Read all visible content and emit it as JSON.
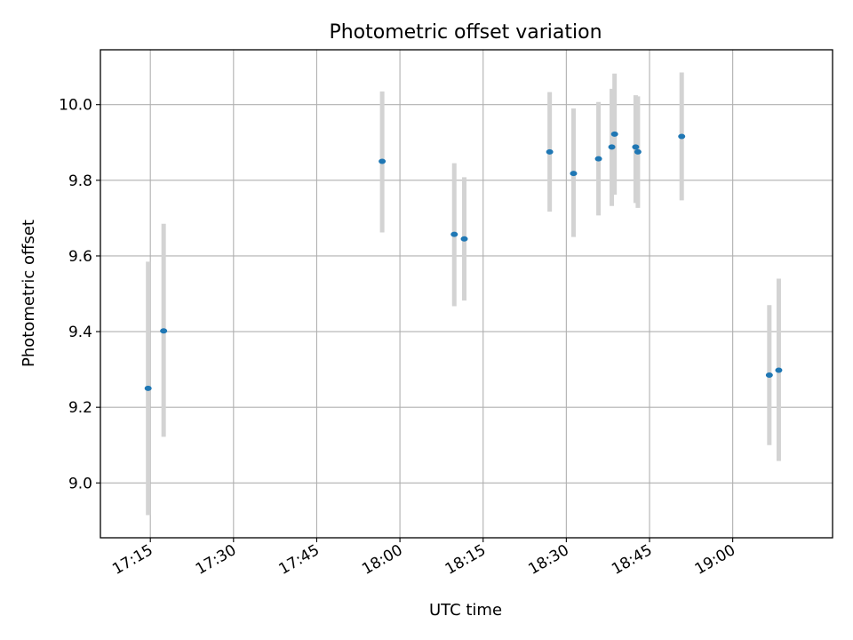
{
  "chart_data": {
    "type": "scatter",
    "title": "Photometric offset variation",
    "xlabel": "UTC time",
    "ylabel": "Photometric offset",
    "xlim": [
      "17:06",
      "19:18"
    ],
    "ylim": [
      8.855,
      10.145
    ],
    "x_ticks": [
      "17:15",
      "17:30",
      "17:45",
      "18:00",
      "18:15",
      "18:30",
      "18:45",
      "19:00"
    ],
    "y_ticks": [
      "9.0",
      "9.2",
      "9.4",
      "9.6",
      "9.8",
      "10.0"
    ],
    "grid": true,
    "legend": "none",
    "colors": {
      "point": "#1f77b4",
      "errorbar": "#d3d3d3",
      "grid": "#b0b0b0"
    },
    "points": [
      {
        "time": "17:14:36",
        "y": 9.25,
        "err_low": 8.915,
        "err_high": 9.585
      },
      {
        "time": "17:17:24",
        "y": 9.402,
        "err_low": 9.122,
        "err_high": 9.685
      },
      {
        "time": "17:56:48",
        "y": 9.85,
        "err_low": 9.662,
        "err_high": 10.035
      },
      {
        "time": "18:09:48",
        "y": 9.657,
        "err_low": 9.467,
        "err_high": 9.845
      },
      {
        "time": "18:11:36",
        "y": 9.645,
        "err_low": 9.482,
        "err_high": 9.808
      },
      {
        "time": "18:27:00",
        "y": 9.875,
        "err_low": 9.717,
        "err_high": 10.033
      },
      {
        "time": "18:31:18",
        "y": 9.818,
        "err_low": 9.65,
        "err_high": 9.99
      },
      {
        "time": "18:35:48",
        "y": 9.857,
        "err_low": 9.707,
        "err_high": 10.007
      },
      {
        "time": "18:38:12",
        "y": 9.888,
        "err_low": 9.732,
        "err_high": 10.042
      },
      {
        "time": "18:38:42",
        "y": 9.922,
        "err_low": 9.762,
        "err_high": 10.082
      },
      {
        "time": "18:42:30",
        "y": 9.888,
        "err_low": 9.74,
        "err_high": 10.025
      },
      {
        "time": "18:42:54",
        "y": 9.875,
        "err_low": 9.727,
        "err_high": 10.022
      },
      {
        "time": "18:50:48",
        "y": 9.916,
        "err_low": 9.747,
        "err_high": 10.085
      },
      {
        "time": "19:06:36",
        "y": 9.285,
        "err_low": 9.1,
        "err_high": 9.47
      },
      {
        "time": "19:08:18",
        "y": 9.298,
        "err_low": 9.058,
        "err_high": 9.54
      }
    ]
  }
}
